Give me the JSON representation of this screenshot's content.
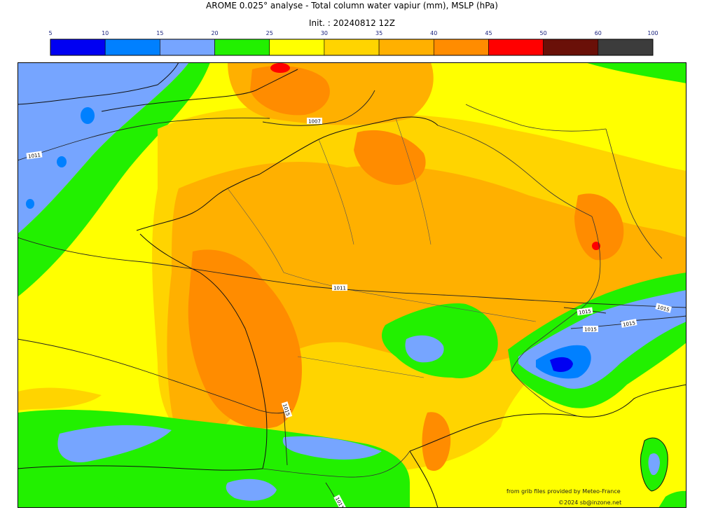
{
  "header": {
    "title": "AROME 0.025° analyse - Total column water vapiur (mm), MSLP (hPa)",
    "init": "Init. : 20240812 12Z"
  },
  "legend": {
    "ticks": [
      "5",
      "10",
      "15",
      "20",
      "25",
      "30",
      "35",
      "40",
      "45",
      "50",
      "60",
      "100"
    ],
    "colors": [
      "#0000f2",
      "#0080ff",
      "#76a5ff",
      "#22f000",
      "#ffff00",
      "#ffd400",
      "#ffb000",
      "#ff8c00",
      "#ff0000",
      "#6a1008",
      "#3c3c3c"
    ]
  },
  "isobars": [
    {
      "label": "1011",
      "value": 1011
    },
    {
      "label": "1007",
      "value": 1007
    },
    {
      "label": "1011",
      "value": 1011
    },
    {
      "label": "1015",
      "value": 1015
    },
    {
      "label": "1011",
      "value": 1011
    },
    {
      "label": "1015",
      "value": 1015
    },
    {
      "label": "1015",
      "value": 1015
    },
    {
      "label": "1015",
      "value": 1015
    },
    {
      "label": "1015",
      "value": 1015
    }
  ],
  "credits": {
    "source": "from grib files provided by Meteo-France",
    "copyright": "©2024 sb@inzone.net"
  }
}
